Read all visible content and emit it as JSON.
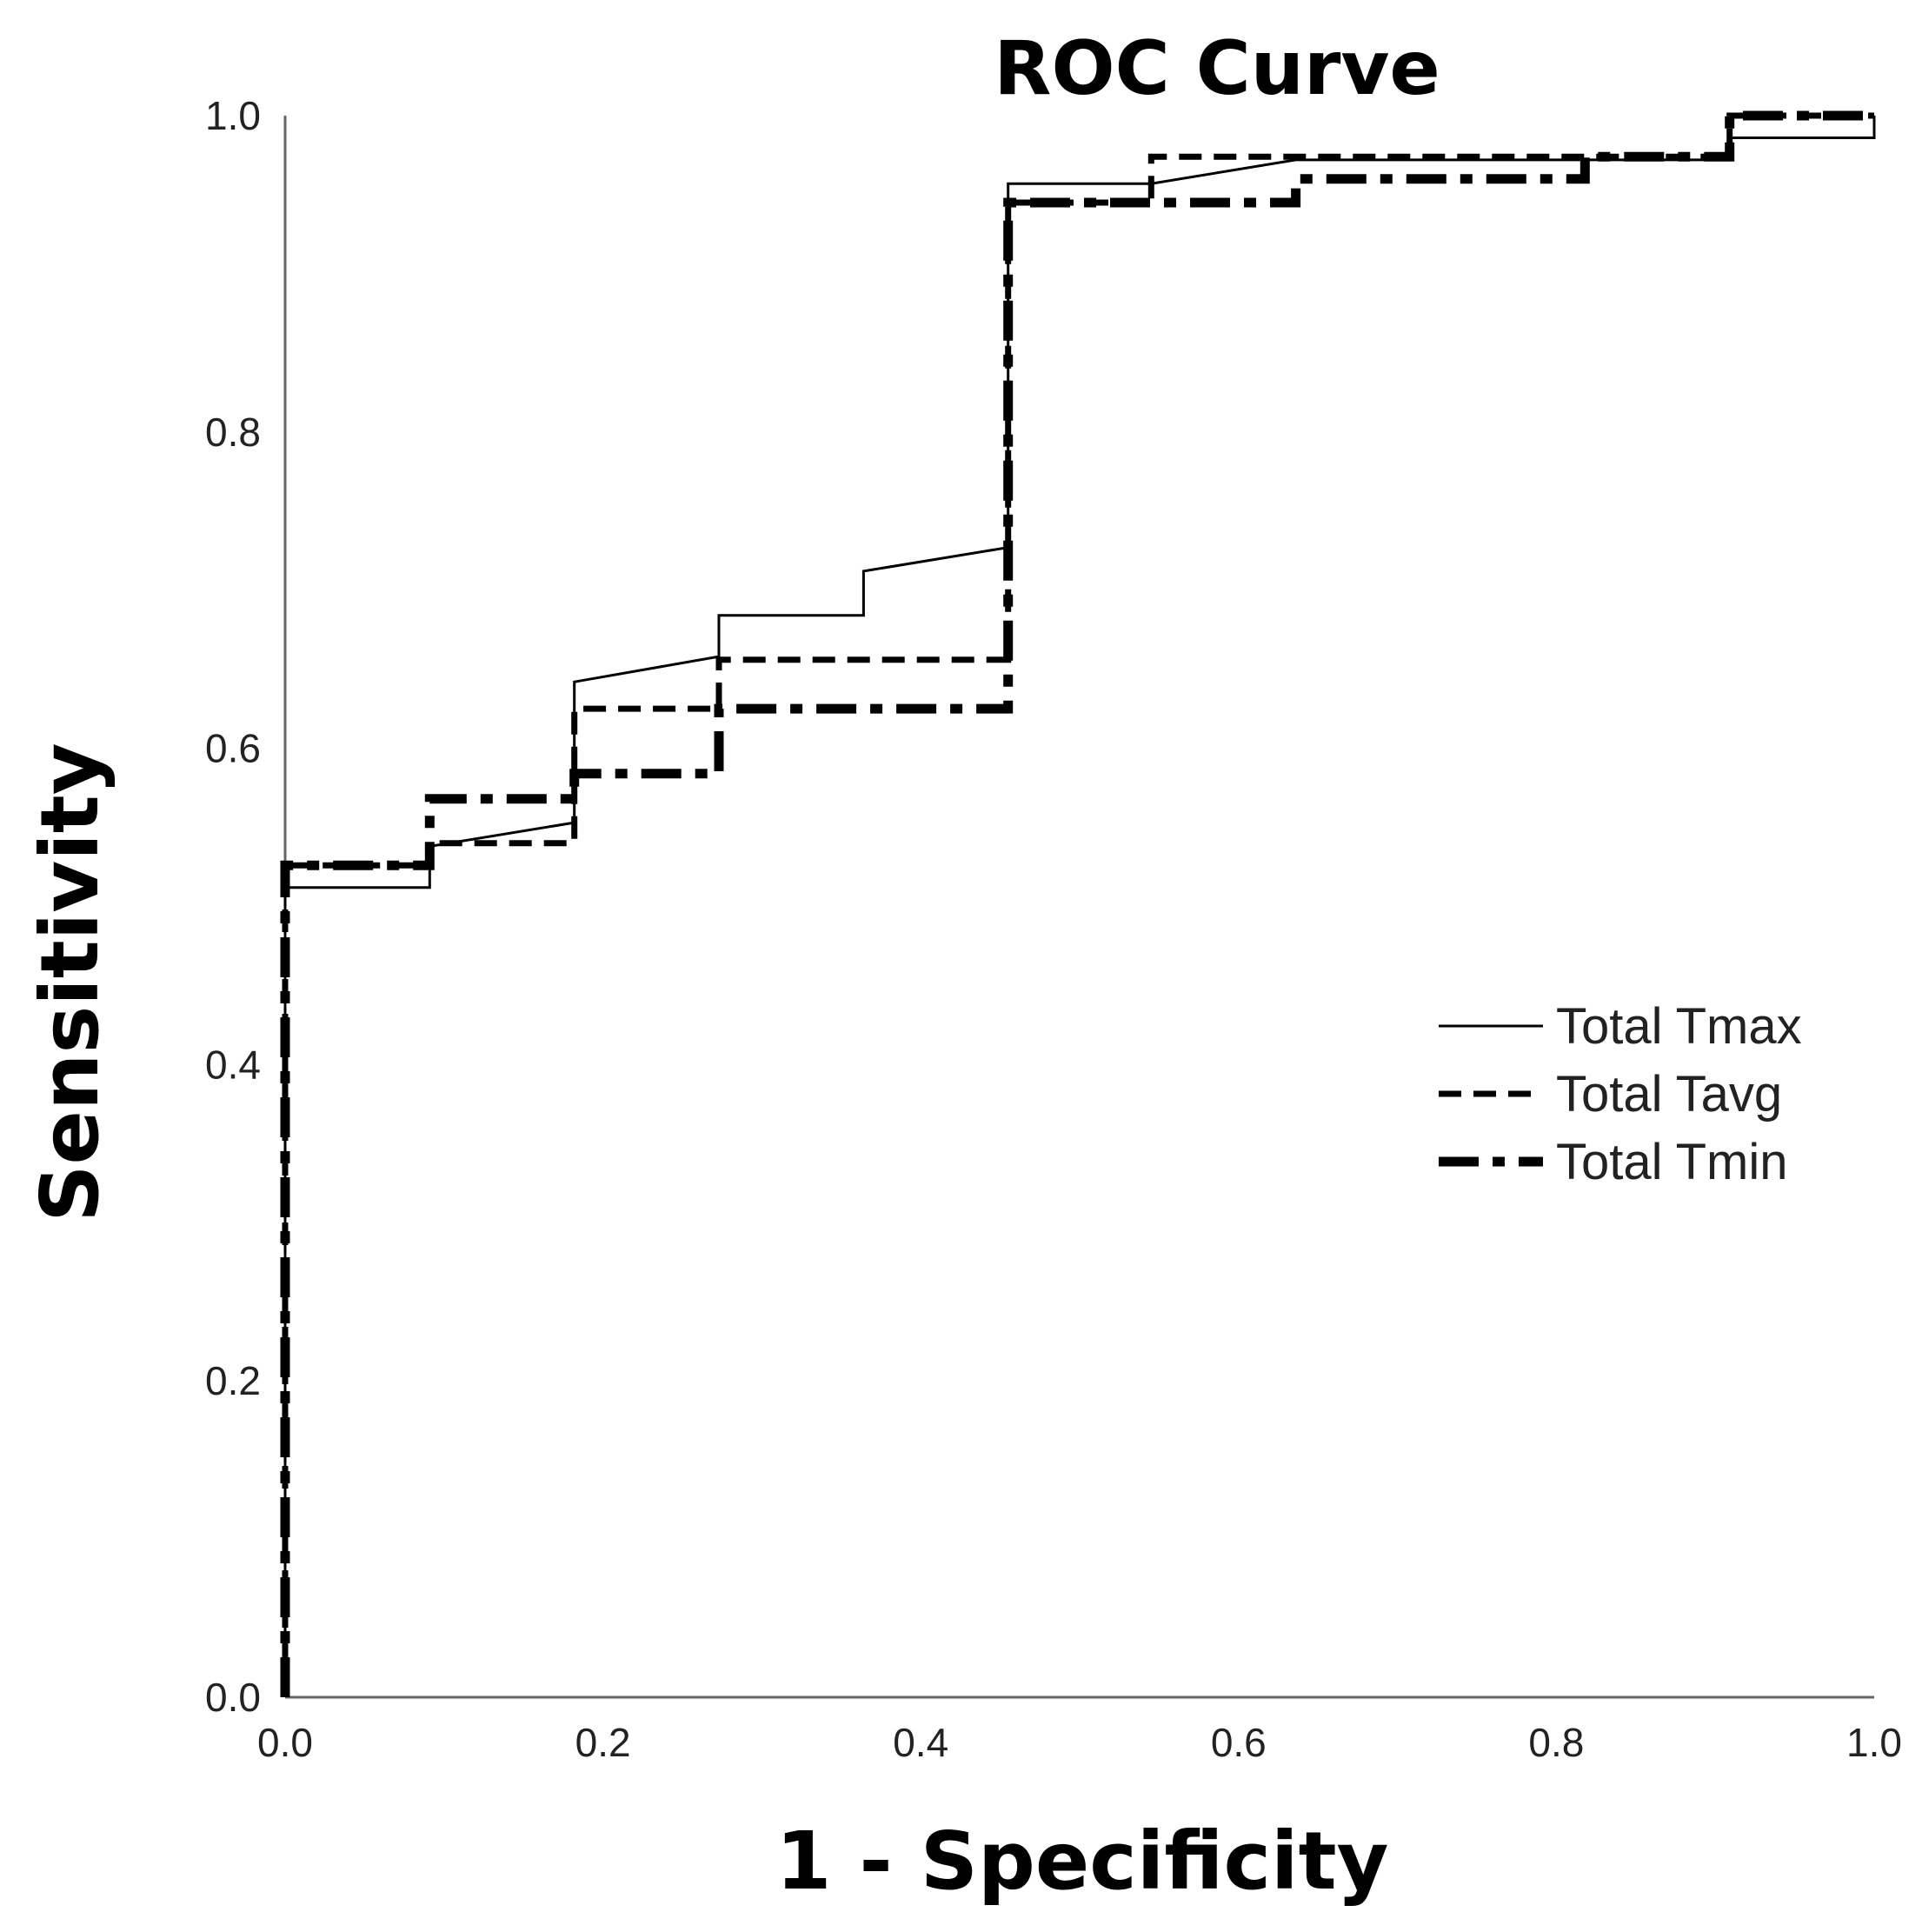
{
  "chart_data": {
    "type": "line",
    "title": "ROC Curve",
    "xlabel": "1 - Specificity",
    "ylabel": "Sensitivity",
    "xlim": [
      0,
      1
    ],
    "ylim": [
      0,
      1
    ],
    "x_ticks": [
      "0.0",
      "0.2",
      "0.4",
      "0.6",
      "0.8",
      "1.0"
    ],
    "y_ticks": [
      "0.0",
      "0.2",
      "0.4",
      "0.6",
      "0.8",
      "1.0"
    ],
    "grid": false,
    "legend_position": "middle-right",
    "series": [
      {
        "name": "Total Tmax",
        "style": "solid",
        "color": "#000000",
        "x": [
          0.0,
          0.0,
          0.091,
          0.091,
          0.182,
          0.182,
          0.273,
          0.273,
          0.364,
          0.364,
          0.455,
          0.455,
          0.545,
          0.636,
          0.909,
          0.909,
          1.0,
          1.0
        ],
        "y": [
          0.0,
          0.512,
          0.512,
          0.538,
          0.553,
          0.642,
          0.658,
          0.684,
          0.684,
          0.712,
          0.727,
          0.957,
          0.957,
          0.972,
          0.972,
          0.986,
          0.986,
          1.0
        ]
      },
      {
        "name": "Total Tavg",
        "style": "dashed",
        "color": "#000000",
        "x": [
          0.0,
          0.0,
          0.091,
          0.091,
          0.182,
          0.182,
          0.273,
          0.273,
          0.455,
          0.455,
          0.545,
          0.545,
          0.909,
          0.909,
          1.0
        ],
        "y": [
          0.0,
          0.526,
          0.526,
          0.54,
          0.54,
          0.625,
          0.625,
          0.656,
          0.656,
          0.945,
          0.945,
          0.974,
          0.974,
          1.0,
          1.0
        ]
      },
      {
        "name": "Total Tmin",
        "style": "dashdot",
        "color": "#000000",
        "x": [
          0.0,
          0.0,
          0.091,
          0.091,
          0.182,
          0.182,
          0.273,
          0.273,
          0.455,
          0.455,
          0.636,
          0.636,
          0.818,
          0.818,
          0.909,
          0.909,
          1.0
        ],
        "y": [
          0.0,
          0.526,
          0.526,
          0.568,
          0.568,
          0.584,
          0.584,
          0.625,
          0.625,
          0.945,
          0.945,
          0.96,
          0.96,
          0.974,
          0.974,
          1.0,
          1.0
        ]
      }
    ]
  }
}
